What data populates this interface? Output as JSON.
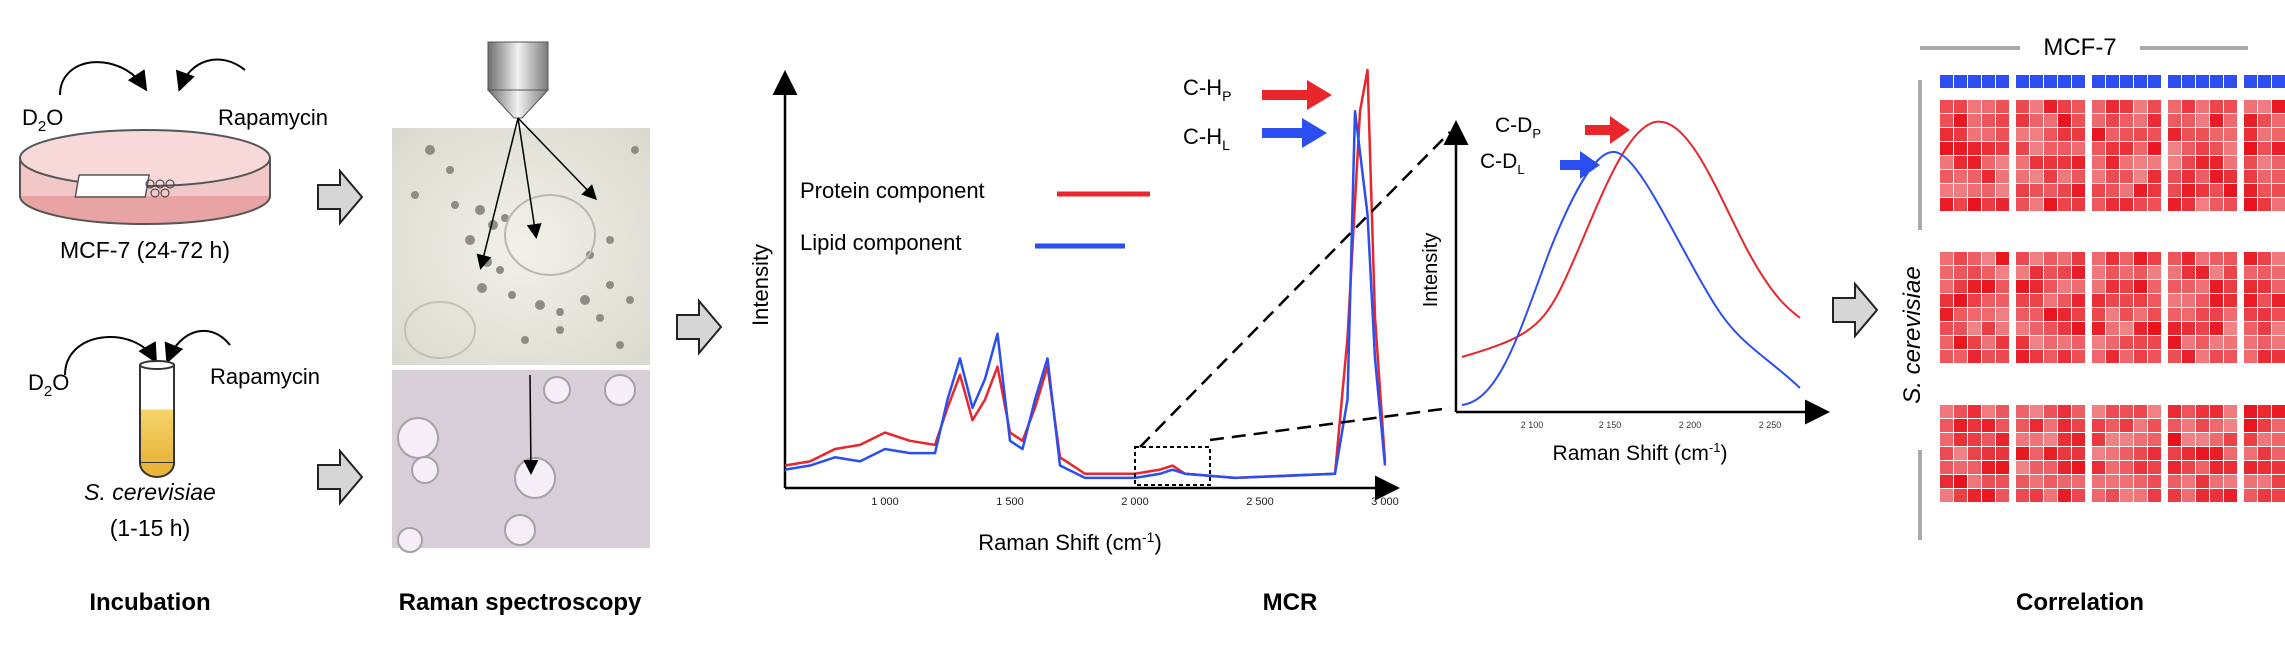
{
  "stages": {
    "incubation": "Incubation",
    "raman": "Raman spectroscopy",
    "mcr": "MCR",
    "correlation": "Correlation"
  },
  "incubation": {
    "mcf7": {
      "reagent_left": "D",
      "reagent_left_sub": "2",
      "reagent_left_tail": "O",
      "reagent_right": "Rapamycin",
      "caption": "MCF-7 (24-72 h)"
    },
    "yeast": {
      "reagent_left": "D",
      "reagent_left_sub": "2",
      "reagent_left_tail": "O",
      "reagent_right": "Rapamycin",
      "caption_organism": "S. cerevisiae",
      "caption_time": "(1-15 h)"
    }
  },
  "spectrum": {
    "ylabel": "Intensity",
    "xlabel_main": "Raman Shift (cm",
    "xlabel_sup": "-1",
    "xlabel_tail": ")",
    "x_ticks": [
      "1 000",
      "1 500",
      "2 000",
      "2 500",
      "3 000"
    ],
    "legend": {
      "protein": "Protein component",
      "lipid": "Lipid component"
    },
    "annotations": {
      "ch_p": "C-H",
      "ch_p_sub": "P",
      "ch_l": "C-H",
      "ch_l_sub": "L"
    },
    "colors": {
      "protein": "#e8262b",
      "lipid": "#2a4ef0"
    }
  },
  "inset": {
    "ylabel": "Intensity",
    "xlabel_main": "Raman Shift (cm",
    "xlabel_sup": "-1",
    "xlabel_tail": ")",
    "x_ticks": [
      "2 100",
      "2 150",
      "2 200",
      "2 250"
    ],
    "annotations": {
      "cd_p": "C-D",
      "cd_p_sub": "P",
      "cd_l": "C-D",
      "cd_l_sub": "L"
    }
  },
  "heatmap": {
    "top_label": "MCF-7",
    "side_label": "S. cerevisiae",
    "colors": {
      "header": "#2f4ef2",
      "low": "#f5c0c0",
      "high": "#e8121c"
    }
  },
  "chart_data": {
    "type": "line",
    "x_range": [
      600,
      3000
    ],
    "series": [
      {
        "name": "Protein component",
        "x": [
          600,
          700,
          800,
          900,
          1000,
          1100,
          1200,
          1250,
          1300,
          1350,
          1400,
          1450,
          1500,
          1550,
          1600,
          1650,
          1700,
          1800,
          2000,
          2100,
          2150,
          2200,
          2400,
          2800,
          2850,
          2900,
          2930,
          2960,
          3000
        ],
        "values": [
          0.04,
          0.05,
          0.08,
          0.09,
          0.12,
          0.1,
          0.09,
          0.18,
          0.26,
          0.15,
          0.2,
          0.28,
          0.12,
          0.1,
          0.18,
          0.28,
          0.06,
          0.02,
          0.02,
          0.03,
          0.04,
          0.02,
          0.01,
          0.02,
          0.35,
          0.9,
          1.0,
          0.4,
          0.05
        ]
      },
      {
        "name": "Lipid component",
        "x": [
          600,
          700,
          800,
          900,
          1000,
          1100,
          1200,
          1250,
          1300,
          1350,
          1400,
          1450,
          1500,
          1550,
          1600,
          1650,
          1700,
          1800,
          2000,
          2100,
          2150,
          2200,
          2400,
          2800,
          2850,
          2880,
          2900,
          2930,
          2960,
          3000
        ],
        "values": [
          0.03,
          0.04,
          0.06,
          0.05,
          0.08,
          0.07,
          0.07,
          0.2,
          0.3,
          0.18,
          0.25,
          0.36,
          0.1,
          0.08,
          0.2,
          0.3,
          0.04,
          0.01,
          0.01,
          0.02,
          0.03,
          0.02,
          0.01,
          0.02,
          0.2,
          0.9,
          0.8,
          0.65,
          0.3,
          0.04
        ]
      }
    ]
  }
}
